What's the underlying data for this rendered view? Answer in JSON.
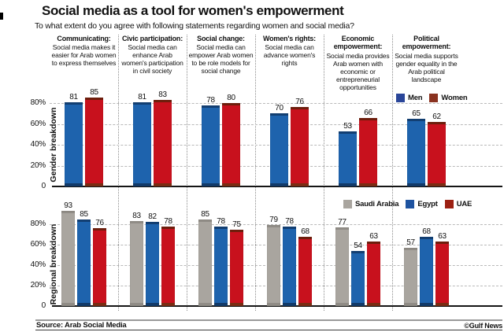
{
  "page": {
    "title": "Social media as a tool for women's empowerment",
    "subtitle": "To what extent do you agree with following statements regarding women and social media?",
    "source": "Source: Arab Social Media",
    "credit": "©Gulf News"
  },
  "chart_data": {
    "type": "bar",
    "title": "Social media as a tool for women's empowerment",
    "subtitle": "To what extent do you agree with following statements regarding women and social media?",
    "grid": "horizontal dashed gridlines at 20/40/60/80, dotted vertical separators between categories",
    "categories": [
      {
        "label": "Communicating:",
        "description": "Social media makes it easier for Arab women to express themselves"
      },
      {
        "label": "Civic participation:",
        "description": "Social media can enhance Arab women's participation in civil society"
      },
      {
        "label": "Social change:",
        "description": "Social media can empower Arab women to be role models for social change"
      },
      {
        "label": "Women's rights:",
        "description": "Social media can advance women's rights"
      },
      {
        "label": "Economic empowerment:",
        "description": "Social media provides Arab women with economic or entrepreneurial opportunities"
      },
      {
        "label": "Political empowerment:",
        "description": "Social media supports gender equality in the Arab political landscape"
      }
    ],
    "panels": [
      {
        "name": "Gender breakdown",
        "ylabel": "Gender breakdown",
        "ylim": [
          0,
          100
        ],
        "yticks": [
          {
            "value": 80,
            "label": "80%"
          },
          {
            "value": 60,
            "label": "60%"
          },
          {
            "value": 40,
            "label": "40%"
          },
          {
            "value": 20,
            "label": "20%"
          },
          {
            "value": 0,
            "label": "0"
          }
        ],
        "legend_position": "top-right inside plot",
        "series": [
          {
            "name": "Men",
            "color": "#1e63ad",
            "cap_top": "#123f73",
            "cap_bottom": "#123a69",
            "legend_color": "#2a4699",
            "values": [
              81,
              81,
              78,
              70,
              53,
              65
            ]
          },
          {
            "name": "Women",
            "color": "#c8111d",
            "cap_top": "#6f1e0c",
            "cap_bottom": "#7a2c13",
            "legend_color": "#8a3220",
            "values": [
              85,
              83,
              80,
              76,
              66,
              62
            ]
          }
        ]
      },
      {
        "name": "Regional breakdown",
        "ylabel": "Regional breakdown",
        "ylim": [
          0,
          100
        ],
        "yticks": [
          {
            "value": 80,
            "label": "80%"
          },
          {
            "value": 60,
            "label": "60%"
          },
          {
            "value": 40,
            "label": "40%"
          },
          {
            "value": 20,
            "label": "20%"
          },
          {
            "value": 0,
            "label": "0"
          }
        ],
        "legend_position": "top-right inside plot",
        "series": [
          {
            "name": "Saudi Arabia",
            "color": "#a9a59f",
            "cap_top": "#908c86",
            "cap_bottom": "#908c86",
            "legend_color": "#a9a59f",
            "values": [
              93,
              83,
              85,
              79,
              77,
              57
            ]
          },
          {
            "name": "Egypt",
            "color": "#1e63ad",
            "cap_top": "#123f73",
            "cap_bottom": "#123a69",
            "legend_color": "#1e53a0",
            "values": [
              85,
              82,
              78,
              78,
              54,
              68
            ]
          },
          {
            "name": "UAE",
            "color": "#c8111d",
            "cap_top": "#6f1e0c",
            "cap_bottom": "#7a2c13",
            "legend_color": "#9c2012",
            "values": [
              76,
              78,
              75,
              68,
              63,
              63
            ]
          }
        ]
      }
    ]
  }
}
